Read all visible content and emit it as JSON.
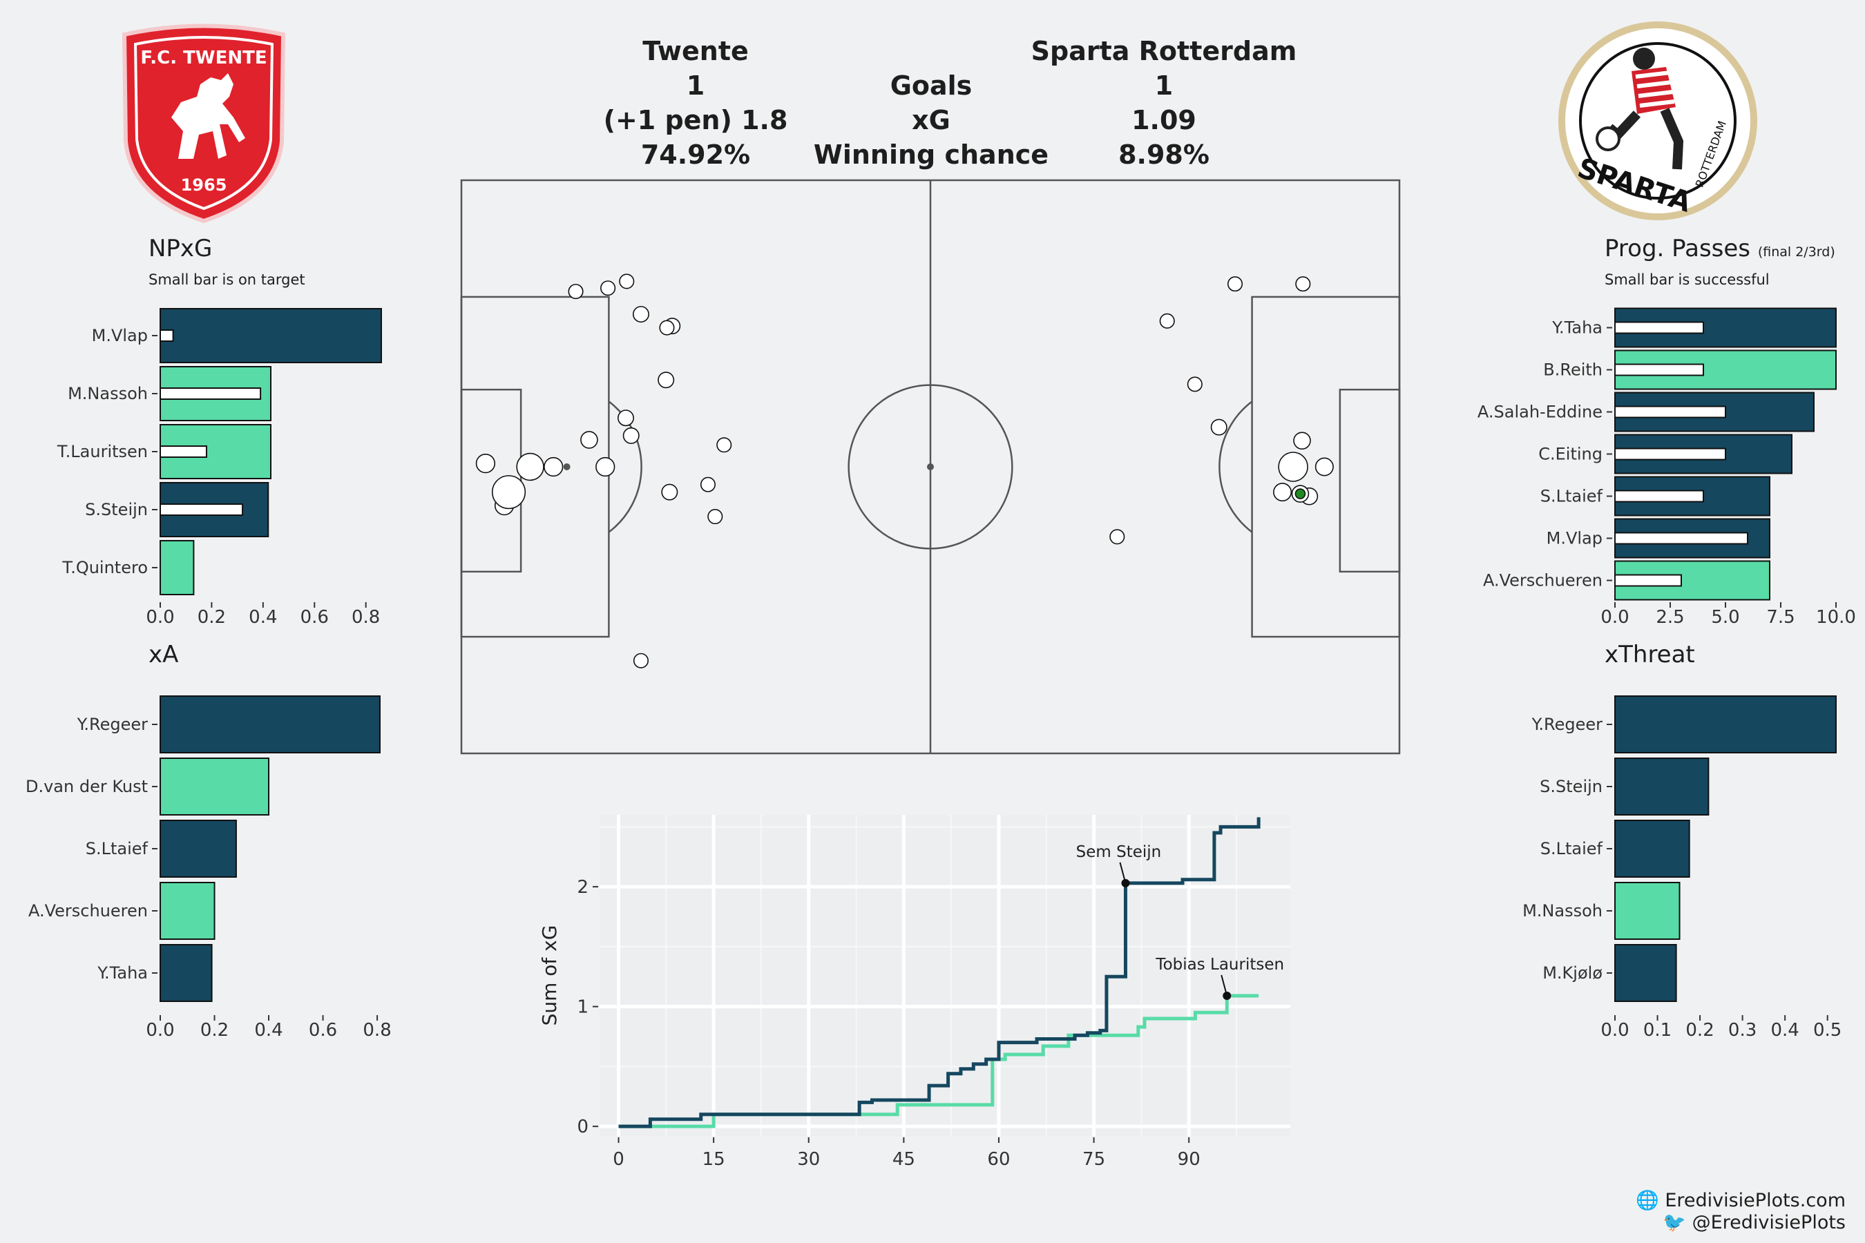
{
  "header": {
    "home_team": "Twente",
    "away_team": "Sparta Rotterdam",
    "goals_label": "Goals",
    "xg_label": "xG",
    "win_label": "Winning chance",
    "home_goals": "1",
    "away_goals": "1",
    "home_xg": "(+1 pen) 1.8",
    "away_xg": "1.09",
    "home_win": "74.92%",
    "away_win": "8.98%"
  },
  "crests": {
    "home_top": "F.C. TWENTE",
    "home_year": "1965",
    "away_main": "SPARTA",
    "away_side": "ROTTERDAM"
  },
  "colors": {
    "home": "#15475f",
    "away": "#58dba7",
    "background": "#f0f1f2",
    "pitch_line": "#555555"
  },
  "credits": {
    "site": "EredivisiePlots.com",
    "twitter": "@EredivisiePlots",
    "site_icon": "globe-icon",
    "twitter_icon": "twitter-bird-icon"
  },
  "panels": {
    "npxg": {
      "title": "NPxG",
      "subtitle": "Small bar is on target"
    },
    "xa": {
      "title": "xA"
    },
    "prog": {
      "title": "Prog. Passes",
      "title_small": "(final 2/3rd)",
      "subtitle": "Small bar is successful"
    },
    "xthreat": {
      "title": "xThreat"
    }
  },
  "chart_data": [
    {
      "id": "npxg",
      "type": "bar",
      "orientation": "horizontal",
      "categories": [
        "M.Vlap",
        "M.Nassoh",
        "T.Lauritsen",
        "S.Steijn",
        "T.Quintero"
      ],
      "values": [
        0.86,
        0.43,
        0.43,
        0.42,
        0.13
      ],
      "inner_values": [
        0.05,
        0.39,
        0.18,
        0.32,
        null
      ],
      "teams": [
        "home",
        "away",
        "away",
        "home",
        "away"
      ],
      "xlim": [
        0,
        0.86
      ],
      "xticks": [
        0.0,
        0.2,
        0.4,
        0.6,
        0.8
      ],
      "tick_labels": [
        "0.0",
        "0.2",
        "0.4",
        "0.6",
        "0.8"
      ]
    },
    {
      "id": "xa",
      "type": "bar",
      "orientation": "horizontal",
      "categories": [
        "Y.Regeer",
        "D.van der Kust",
        "S.Ltaief",
        "A.Verschueren",
        "Y.Taha"
      ],
      "values": [
        0.81,
        0.4,
        0.28,
        0.2,
        0.19
      ],
      "teams": [
        "home",
        "away",
        "home",
        "away",
        "home"
      ],
      "xlim": [
        0,
        0.81
      ],
      "xticks": [
        0.0,
        0.2,
        0.4,
        0.6,
        0.8
      ],
      "tick_labels": [
        "0.0",
        "0.2",
        "0.4",
        "0.6",
        "0.8"
      ]
    },
    {
      "id": "prog",
      "type": "bar",
      "orientation": "horizontal",
      "categories": [
        "Y.Taha",
        "B.Reith",
        "A.Salah-Eddine",
        "C.Eiting",
        "S.Ltaief",
        "M.Vlap",
        "A.Verschueren"
      ],
      "values": [
        10,
        10,
        9,
        8,
        7,
        7,
        7
      ],
      "inner_values": [
        4,
        4,
        5,
        5,
        4,
        6,
        3
      ],
      "teams": [
        "home",
        "away",
        "home",
        "home",
        "home",
        "home",
        "away"
      ],
      "xlim": [
        0,
        10
      ],
      "xticks": [
        0,
        2.5,
        5,
        7.5,
        10
      ],
      "tick_labels": [
        "0.0",
        "2.5",
        "5.0",
        "7.5",
        "10.0"
      ]
    },
    {
      "id": "xthreat",
      "type": "bar",
      "orientation": "horizontal",
      "categories": [
        "Y.Regeer",
        "S.Steijn",
        "S.Ltaief",
        "M.Nassoh",
        "M.Kjølø"
      ],
      "values": [
        0.52,
        0.22,
        0.175,
        0.152,
        0.144
      ],
      "teams": [
        "home",
        "home",
        "home",
        "away",
        "home"
      ],
      "xlim": [
        0,
        0.52
      ],
      "xticks": [
        0.0,
        0.1,
        0.2,
        0.3,
        0.4,
        0.5
      ],
      "tick_labels": [
        "0.0",
        "0.1",
        "0.2",
        "0.3",
        "0.4",
        "0.5"
      ]
    },
    {
      "id": "shotmap",
      "type": "scatter",
      "pitch": {
        "length": 105,
        "width": 68
      },
      "home_shots": [
        [
          4.8,
          29.4,
          0.06
        ],
        [
          2.7,
          34.4,
          0.06
        ],
        [
          7.7,
          34.0,
          0.2
        ],
        [
          5.3,
          31.0,
          0.35
        ],
        [
          10.3,
          34.0,
          0.06
        ],
        [
          16.1,
          34.0,
          0.06
        ],
        [
          14.3,
          37.2,
          0.04
        ],
        [
          19.0,
          37.7,
          0.03
        ],
        [
          12.8,
          54.8,
          0.02
        ],
        [
          16.4,
          55.2,
          0.02
        ],
        [
          20.1,
          52.1,
          0.03
        ],
        [
          18.5,
          56.0,
          0.02
        ],
        [
          23.6,
          50.7,
          0.03
        ],
        [
          23.0,
          50.5,
          0.02
        ],
        [
          22.9,
          44.3,
          0.03
        ],
        [
          18.4,
          39.8,
          0.03
        ],
        [
          23.3,
          31.0,
          0.03
        ],
        [
          27.6,
          31.9,
          0.02
        ],
        [
          29.4,
          36.6,
          0.02
        ],
        [
          28.4,
          28.1,
          0.02
        ],
        [
          20.1,
          11.0,
          0.02
        ]
      ],
      "home_penalty": [
        11.8,
        34.0
      ],
      "away_shots": [
        [
          73.4,
          25.7,
          0.02
        ],
        [
          82.1,
          43.8,
          0.02
        ],
        [
          79.0,
          51.3,
          0.02
        ],
        [
          86.6,
          55.7,
          0.02
        ],
        [
          94.2,
          55.7,
          0.02
        ],
        [
          84.8,
          38.7,
          0.03
        ],
        [
          94.1,
          37.1,
          0.04
        ],
        [
          93.1,
          34.0,
          0.25
        ],
        [
          96.6,
          34.0,
          0.05
        ],
        [
          91.9,
          31.0,
          0.05
        ],
        [
          94.9,
          30.5,
          0.04
        ],
        [
          93.9,
          30.8,
          0.04
        ]
      ],
      "away_goal": [
        93.9,
        30.8
      ],
      "away_penalty": [
        93.2,
        34.0
      ]
    },
    {
      "id": "xg_timeline",
      "type": "line",
      "ylabel": "Sum of xG",
      "xlim": [
        -3,
        106
      ],
      "ylim": [
        -0.08,
        2.6
      ],
      "xticks": [
        0,
        15,
        30,
        45,
        60,
        75,
        90
      ],
      "yticks": [
        0,
        1,
        2
      ],
      "series": [
        {
          "team": "home",
          "steps": [
            [
              0,
              0
            ],
            [
              5,
              0.06
            ],
            [
              13,
              0.1
            ],
            [
              38,
              0.2
            ],
            [
              40,
              0.22
            ],
            [
              49,
              0.34
            ],
            [
              52,
              0.44
            ],
            [
              54,
              0.48
            ],
            [
              56,
              0.52
            ],
            [
              58,
              0.56
            ],
            [
              60,
              0.7
            ],
            [
              66,
              0.73
            ],
            [
              72,
              0.76
            ],
            [
              74,
              0.78
            ],
            [
              76,
              0.8
            ],
            [
              77,
              1.25
            ],
            [
              80,
              2.03
            ],
            [
              89,
              2.06
            ],
            [
              94,
              2.45
            ],
            [
              95,
              2.5
            ],
            [
              101,
              2.58
            ]
          ],
          "end": 101
        },
        {
          "team": "away",
          "steps": [
            [
              0,
              0
            ],
            [
              15,
              0.1
            ],
            [
              44,
              0.18
            ],
            [
              59,
              0.56
            ],
            [
              61,
              0.6
            ],
            [
              67,
              0.67
            ],
            [
              71,
              0.76
            ],
            [
              82,
              0.83
            ],
            [
              83,
              0.9
            ],
            [
              91,
              0.95
            ],
            [
              96,
              1.09
            ]
          ],
          "end": 101
        }
      ],
      "annotations": [
        {
          "label": "Sem Steijn",
          "x": 80,
          "y": 2.03,
          "team": "home"
        },
        {
          "label": "Tobias Lauritsen",
          "x": 96,
          "y": 1.09,
          "team": "away"
        }
      ]
    }
  ]
}
